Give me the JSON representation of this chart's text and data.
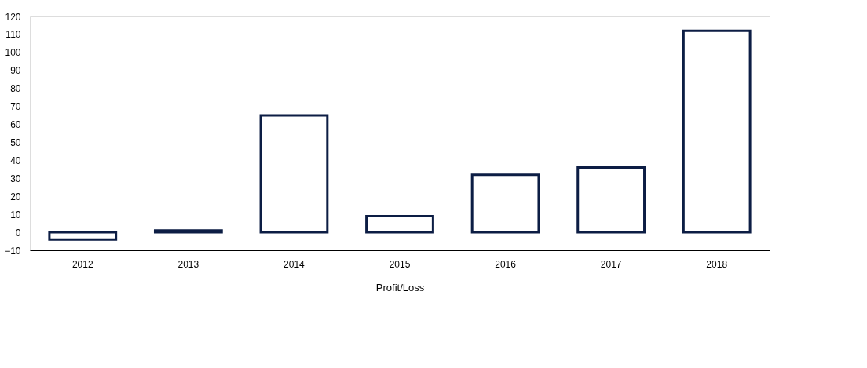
{
  "chart_data": {
    "type": "bar",
    "xlabel": "Profit/Loss",
    "categories": [
      "2012",
      "2013",
      "2014",
      "2015",
      "2016",
      "2017",
      "2018"
    ],
    "series": [
      {
        "color": "#0c1d44",
        "values": [
          -4,
          1,
          65,
          9,
          32,
          36,
          112
        ]
      }
    ],
    "ylim": [
      -10,
      120
    ],
    "yticks": [
      -10,
      0,
      10,
      20,
      30,
      40,
      50,
      60,
      70,
      80,
      90,
      100,
      110,
      120
    ],
    "grid": false
  }
}
